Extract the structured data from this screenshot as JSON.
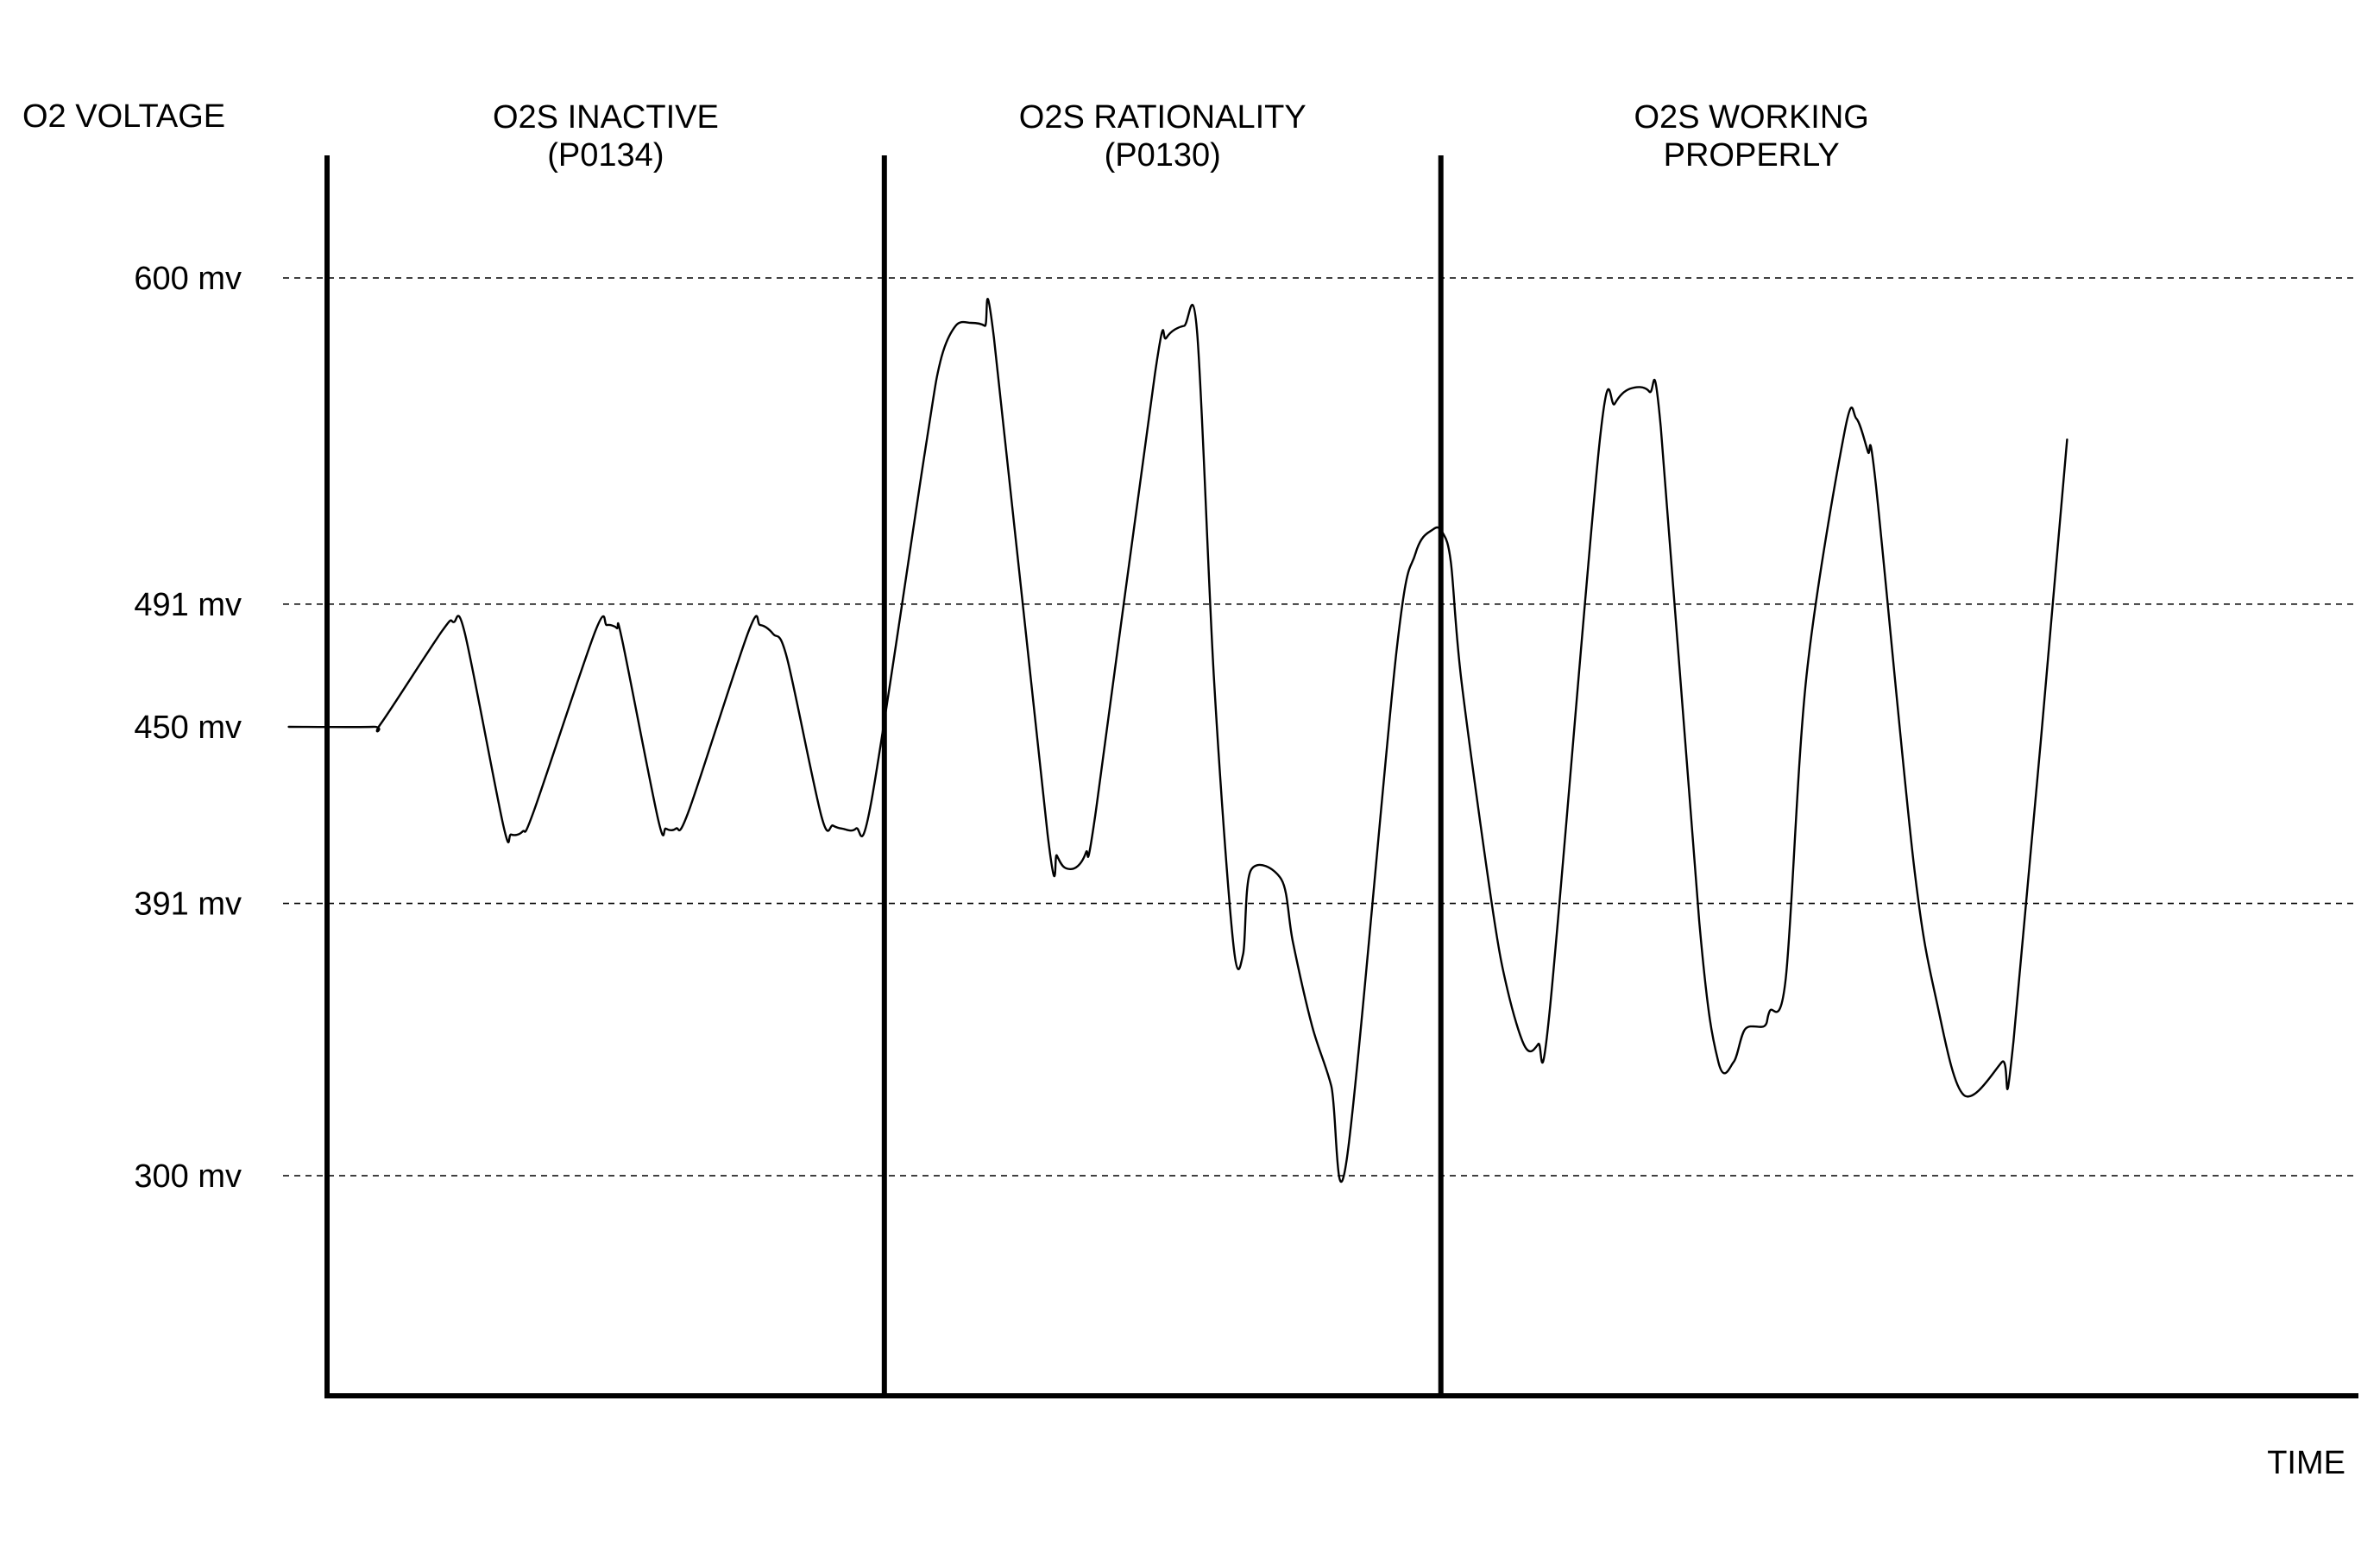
{
  "chart_data": {
    "type": "line",
    "title": "",
    "ylabel": "O2 VOLTAGE",
    "xlabel": "TIME",
    "y_unit": "mv",
    "ylim": [
      205,
      692
    ],
    "xlim": [
      0,
      2650
    ],
    "yticks": [
      {
        "value": 600,
        "label": "600 mv"
      },
      {
        "value": 491,
        "label": "491 mv"
      },
      {
        "value": 450,
        "label": "450 mv"
      },
      {
        "value": 391,
        "label": "391 mv"
      },
      {
        "value": 300,
        "label": "300 mv"
      }
    ],
    "grid": {
      "horizontal_dashed": true,
      "gridline_values": [
        600,
        491,
        391,
        300
      ]
    },
    "regions": [
      {
        "line1": "O2S INACTIVE",
        "line2": "(P0134)",
        "x_start": 0,
        "x_end": 727
      },
      {
        "line1": "O2S RATIONALITY",
        "line2": "(P0130)",
        "x_start": 727,
        "x_end": 1453
      },
      {
        "line1": "O2S WORKING",
        "line2": "PROPERLY",
        "x_start": 1453,
        "x_end": 2650
      }
    ],
    "series": [
      {
        "points": [
          [
            -50,
            450
          ],
          [
            60,
            450
          ],
          [
            70,
            451
          ],
          [
            150,
            482
          ],
          [
            165,
            485
          ],
          [
            180,
            481
          ],
          [
            230,
            417
          ],
          [
            240,
            414
          ],
          [
            255,
            415
          ],
          [
            270,
            422
          ],
          [
            350,
            482
          ],
          [
            365,
            484
          ],
          [
            378,
            483
          ],
          [
            385,
            479
          ],
          [
            432,
            419
          ],
          [
            442,
            416
          ],
          [
            455,
            416
          ],
          [
            472,
            422
          ],
          [
            550,
            482
          ],
          [
            565,
            484
          ],
          [
            582,
            481
          ],
          [
            600,
            473
          ],
          [
            645,
            420
          ],
          [
            660,
            417
          ],
          [
            672,
            416
          ],
          [
            690,
            416
          ],
          [
            710,
            425
          ],
          [
            780,
            542
          ],
          [
            800,
            572
          ],
          [
            820,
            584
          ],
          [
            840,
            585
          ],
          [
            858,
            584
          ],
          [
            870,
            580
          ],
          [
            940,
            414
          ],
          [
            952,
            407
          ],
          [
            962,
            403
          ],
          [
            977,
            403
          ],
          [
            990,
            408
          ],
          [
            1003,
            422
          ],
          [
            1080,
            568
          ],
          [
            1095,
            580
          ],
          [
            1118,
            584
          ],
          [
            1135,
            582
          ],
          [
            1157,
            466
          ],
          [
            1182,
            378
          ],
          [
            1195,
            374
          ],
          [
            1205,
            402
          ],
          [
            1245,
            399
          ],
          [
            1260,
            378
          ],
          [
            1285,
            350
          ],
          [
            1310,
            330
          ],
          [
            1330,
            305
          ],
          [
            1395,
            475
          ],
          [
            1420,
            508
          ],
          [
            1443,
            516
          ],
          [
            1455,
            515
          ],
          [
            1466,
            505
          ],
          [
            1480,
            465
          ],
          [
            1520,
            390
          ],
          [
            1540,
            362
          ],
          [
            1563,
            343
          ],
          [
            1580,
            344
          ],
          [
            1595,
            355
          ],
          [
            1660,
            545
          ],
          [
            1680,
            558
          ],
          [
            1700,
            563
          ],
          [
            1725,
            562
          ],
          [
            1740,
            550
          ],
          [
            1790,
            385
          ],
          [
            1815,
            338
          ],
          [
            1835,
            338
          ],
          [
            1850,
            349
          ],
          [
            1875,
            350
          ],
          [
            1882,
            355
          ],
          [
            1903,
            366
          ],
          [
            1930,
            467
          ],
          [
            1980,
            549
          ],
          [
            1995,
            553
          ],
          [
            2010,
            542
          ],
          [
            2020,
            532
          ],
          [
            2070,
            404
          ],
          [
            2100,
            358
          ],
          [
            2135,
            327
          ],
          [
            2185,
            338
          ],
          [
            2200,
            345
          ],
          [
            2270,
            546
          ]
        ]
      }
    ]
  }
}
